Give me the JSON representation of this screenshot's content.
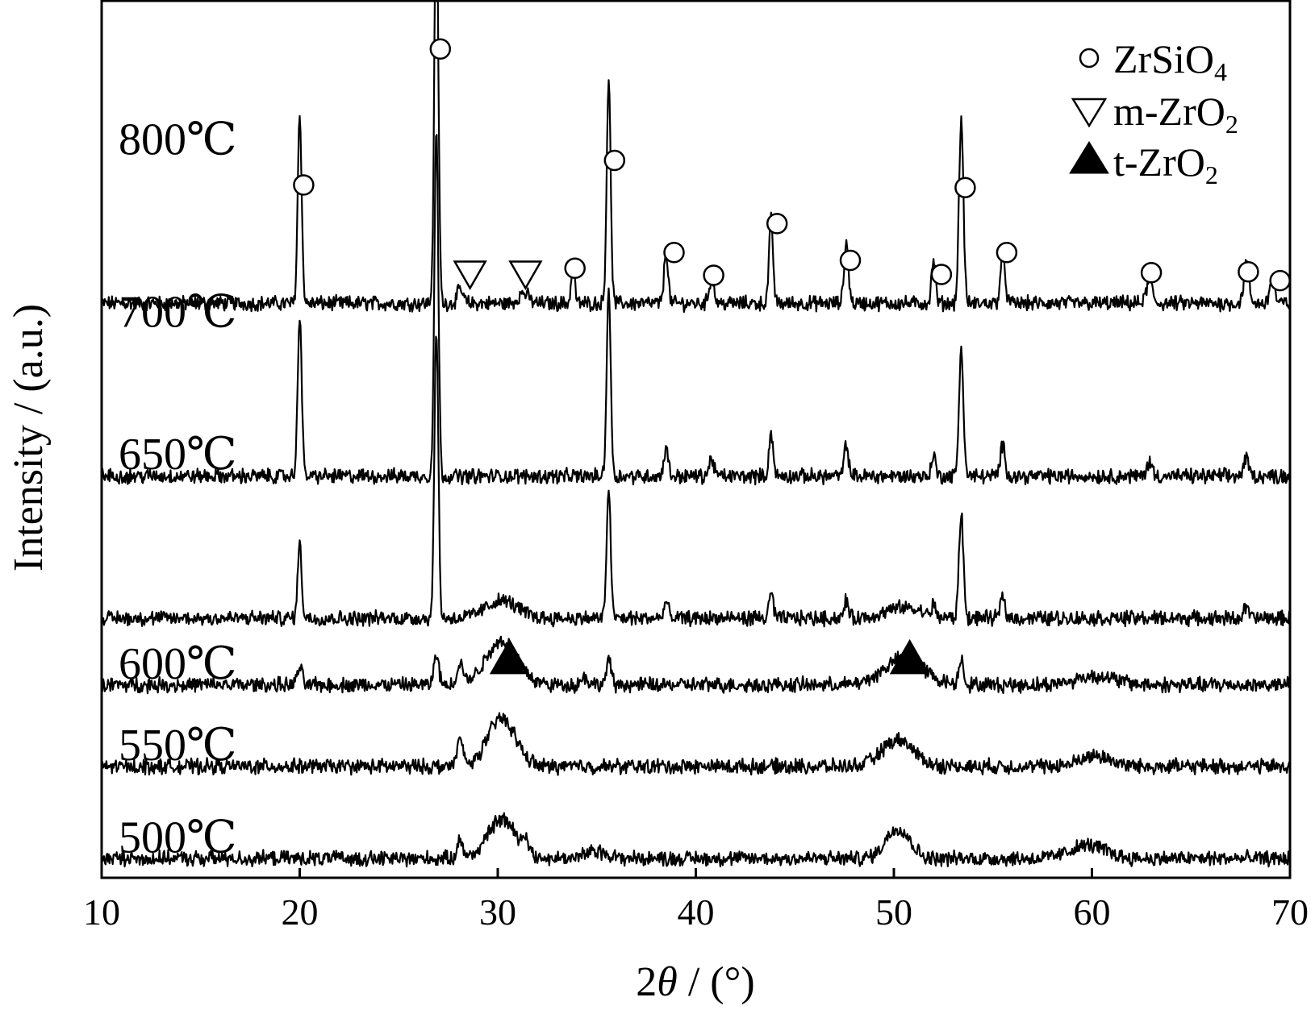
{
  "chart_data": {
    "type": "line",
    "title": "",
    "xlabel": "2θ / (°)",
    "xlabel_prefix": "2",
    "xlabel_theta": "θ",
    "xlabel_suffix": " / (°)",
    "ylabel": "Intensity / (a.u.)",
    "xlim": [
      10,
      70
    ],
    "xticks": [
      10,
      20,
      30,
      40,
      50,
      60,
      70
    ],
    "y_ticks_shown": false,
    "grid": false,
    "legend": {
      "placement": "top-right",
      "entries": [
        {
          "marker": "open-circle",
          "main": "ZrSiO",
          "sub": "4"
        },
        {
          "marker": "open-triangle-down",
          "main": "m-ZrO",
          "sub": "2"
        },
        {
          "marker": "filled-triangle-up",
          "main": "t-ZrO",
          "sub": "2"
        }
      ]
    },
    "series": [
      {
        "name": "800℃",
        "baseline": 0.655,
        "broad": [],
        "peaks": [
          [
            20.0,
            0.215,
            0.1
          ],
          [
            26.9,
            0.465,
            0.1
          ],
          [
            28.1,
            0.015,
            0.15
          ],
          [
            31.3,
            0.012,
            0.25
          ],
          [
            33.8,
            0.045,
            0.09
          ],
          [
            35.6,
            0.255,
            0.1
          ],
          [
            38.5,
            0.06,
            0.1
          ],
          [
            40.8,
            0.03,
            0.12
          ],
          [
            43.8,
            0.095,
            0.1
          ],
          [
            47.6,
            0.07,
            0.11
          ],
          [
            52.0,
            0.05,
            0.1
          ],
          [
            53.4,
            0.21,
            0.11
          ],
          [
            55.5,
            0.055,
            0.12
          ],
          [
            62.9,
            0.025,
            0.15
          ],
          [
            67.8,
            0.045,
            0.13
          ],
          [
            69.1,
            0.03,
            0.12
          ]
        ]
      },
      {
        "name": "700℃",
        "baseline": 0.458,
        "broad": [],
        "peaks": [
          [
            20.0,
            0.185,
            0.1
          ],
          [
            26.9,
            0.395,
            0.1
          ],
          [
            35.6,
            0.215,
            0.1
          ],
          [
            38.5,
            0.035,
            0.1
          ],
          [
            40.8,
            0.02,
            0.12
          ],
          [
            43.8,
            0.05,
            0.1
          ],
          [
            47.6,
            0.035,
            0.11
          ],
          [
            52.0,
            0.025,
            0.1
          ],
          [
            53.4,
            0.145,
            0.11
          ],
          [
            55.5,
            0.035,
            0.12
          ],
          [
            62.9,
            0.015,
            0.15
          ],
          [
            67.8,
            0.02,
            0.13
          ]
        ]
      },
      {
        "name": "650℃",
        "baseline": 0.296,
        "broad": [
          [
            30.2,
            0.02,
            0.8
          ],
          [
            50.5,
            0.012,
            0.9
          ]
        ],
        "peaks": [
          [
            20.0,
            0.085,
            0.1
          ],
          [
            26.9,
            0.33,
            0.1
          ],
          [
            35.6,
            0.15,
            0.1
          ],
          [
            38.5,
            0.02,
            0.1
          ],
          [
            43.8,
            0.03,
            0.1
          ],
          [
            47.6,
            0.02,
            0.11
          ],
          [
            52.0,
            0.012,
            0.1
          ],
          [
            53.4,
            0.12,
            0.11
          ],
          [
            55.5,
            0.025,
            0.12
          ],
          [
            67.8,
            0.012,
            0.13
          ]
        ]
      },
      {
        "name": "600℃",
        "baseline": 0.22,
        "broad": [
          [
            30.2,
            0.05,
            0.8
          ],
          [
            50.5,
            0.03,
            1.0
          ],
          [
            60.2,
            0.01,
            1.0
          ]
        ],
        "peaks": [
          [
            20.0,
            0.02,
            0.12
          ],
          [
            26.9,
            0.035,
            0.12
          ],
          [
            28.1,
            0.025,
            0.15
          ],
          [
            34.4,
            0.01,
            0.15
          ],
          [
            35.6,
            0.028,
            0.12
          ],
          [
            53.4,
            0.03,
            0.12
          ]
        ]
      },
      {
        "name": "550℃",
        "baseline": 0.127,
        "broad": [
          [
            30.2,
            0.055,
            0.7
          ],
          [
            50.2,
            0.03,
            0.8
          ],
          [
            60.2,
            0.012,
            0.8
          ]
        ],
        "peaks": [
          [
            28.1,
            0.03,
            0.15
          ]
        ]
      },
      {
        "name": "500℃",
        "baseline": 0.022,
        "broad": [
          [
            30.2,
            0.045,
            0.7
          ],
          [
            50.2,
            0.035,
            0.6
          ],
          [
            59.8,
            0.015,
            0.9
          ],
          [
            35.0,
            0.008,
            0.6
          ]
        ],
        "peaks": [
          [
            28.1,
            0.02,
            0.15
          ],
          [
            31.4,
            0.015,
            0.2
          ]
        ]
      }
    ],
    "phase_markers": [
      {
        "phase": "ZrSiO4",
        "symbol": "open-circle",
        "x": 20.2,
        "y": 0.79
      },
      {
        "phase": "ZrSiO4",
        "symbol": "open-circle",
        "x": 27.1,
        "y": 0.945
      },
      {
        "phase": "ZrSiO4",
        "symbol": "open-circle",
        "x": 33.9,
        "y": 0.695
      },
      {
        "phase": "ZrSiO4",
        "symbol": "open-circle",
        "x": 35.9,
        "y": 0.818
      },
      {
        "phase": "ZrSiO4",
        "symbol": "open-circle",
        "x": 38.9,
        "y": 0.713
      },
      {
        "phase": "ZrSiO4",
        "symbol": "open-circle",
        "x": 40.9,
        "y": 0.687
      },
      {
        "phase": "ZrSiO4",
        "symbol": "open-circle",
        "x": 44.1,
        "y": 0.746
      },
      {
        "phase": "ZrSiO4",
        "symbol": "open-circle",
        "x": 47.8,
        "y": 0.704
      },
      {
        "phase": "ZrSiO4",
        "symbol": "open-circle",
        "x": 52.4,
        "y": 0.688
      },
      {
        "phase": "ZrSiO4",
        "symbol": "open-circle",
        "x": 53.6,
        "y": 0.787
      },
      {
        "phase": "ZrSiO4",
        "symbol": "open-circle",
        "x": 55.7,
        "y": 0.713
      },
      {
        "phase": "ZrSiO4",
        "symbol": "open-circle",
        "x": 63.0,
        "y": 0.69
      },
      {
        "phase": "ZrSiO4",
        "symbol": "open-circle",
        "x": 67.9,
        "y": 0.691
      },
      {
        "phase": "ZrSiO4",
        "symbol": "open-circle",
        "x": 69.5,
        "y": 0.681
      },
      {
        "phase": "m-ZrO2",
        "symbol": "open-triangle-down",
        "x": 28.6,
        "y": 0.688
      },
      {
        "phase": "m-ZrO2",
        "symbol": "open-triangle-down",
        "x": 31.4,
        "y": 0.688
      },
      {
        "phase": "t-ZrO2",
        "symbol": "filled-triangle-up",
        "x": 30.6,
        "y": 0.252
      },
      {
        "phase": "t-ZrO2",
        "symbol": "filled-triangle-up",
        "x": 50.8,
        "y": 0.252
      }
    ]
  }
}
